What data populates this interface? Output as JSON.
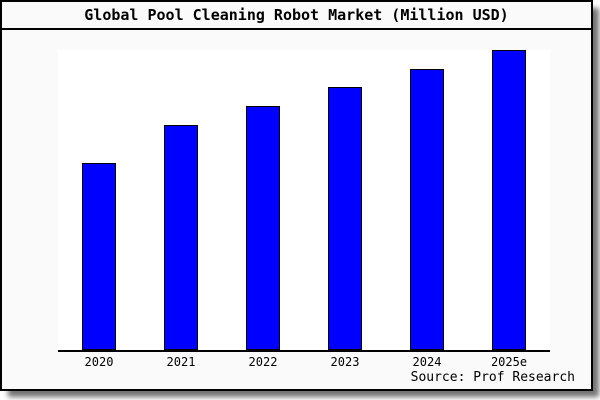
{
  "card": {
    "background": "#fafafa",
    "border_color": "#000000",
    "plot_background": "#ffffff",
    "shadow_color": "#888888"
  },
  "title": "Global Pool Cleaning Robot Market (Million USD)",
  "source": "Source: Prof Research",
  "chart_data": {
    "type": "bar",
    "title": "Global Pool Cleaning Robot Market (Million USD)",
    "categories": [
      "2020",
      "2021",
      "2022",
      "2023",
      "2024",
      "2025e"
    ],
    "values": [
      62.3,
      75.0,
      81.3,
      87.7,
      93.7,
      100.0
    ],
    "values_note": "No y-axis scale shown; values are bar heights as percent of the tallest bar (2025e = 100)",
    "xlabel": "",
    "ylabel": "",
    "ylim": [
      0,
      100
    ],
    "grid": false,
    "legend": null,
    "bar_color": "#0000ff",
    "bar_border_color": "#000000",
    "source_label": "Source: Prof Research"
  }
}
